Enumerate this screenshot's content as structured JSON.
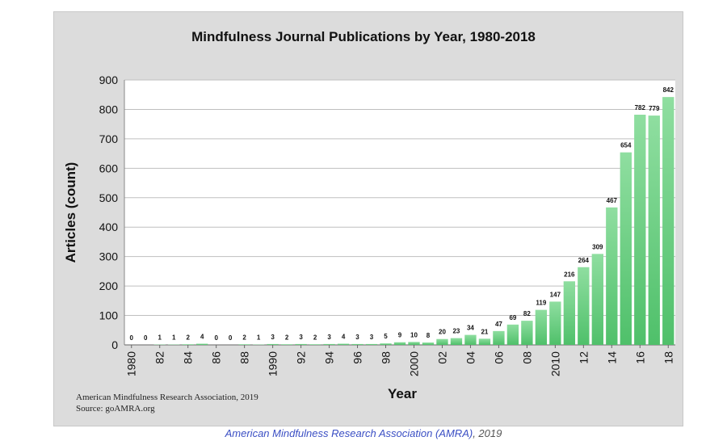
{
  "chart_data": {
    "type": "bar",
    "title": "Mindfulness Journal Publications by Year, 1980-2018",
    "xlabel": "Year",
    "ylabel": "Articles (count)",
    "ylim": [
      0,
      900
    ],
    "yticks": [
      0,
      100,
      200,
      300,
      400,
      500,
      600,
      700,
      800,
      900
    ],
    "grid": true,
    "categories": [
      "1980",
      "1981",
      "1982",
      "1983",
      "1984",
      "1985",
      "1986",
      "1987",
      "1988",
      "1989",
      "1990",
      "1991",
      "1992",
      "1993",
      "1994",
      "1995",
      "1996",
      "1997",
      "1998",
      "1999",
      "2000",
      "2001",
      "2002",
      "2003",
      "2004",
      "2005",
      "2006",
      "2007",
      "2008",
      "2009",
      "2010",
      "2011",
      "2012",
      "2013",
      "2014",
      "2015",
      "2016",
      "2017",
      "2018"
    ],
    "values": [
      0,
      0,
      1,
      1,
      2,
      4,
      0,
      0,
      2,
      1,
      3,
      2,
      3,
      2,
      3,
      4,
      3,
      3,
      5,
      9,
      10,
      8,
      20,
      23,
      34,
      21,
      47,
      69,
      82,
      119,
      147,
      216,
      264,
      309,
      467,
      654,
      782,
      779,
      842
    ],
    "xtick_labels": [
      "1980",
      "82",
      "84",
      "86",
      "88",
      "1990",
      "92",
      "94",
      "96",
      "98",
      "2000",
      "02",
      "04",
      "06",
      "08",
      "2010",
      "12",
      "14",
      "16",
      "18"
    ],
    "bar_color": "#4fc06a"
  },
  "credit": {
    "line1": "American Mindfulness Research Association, 2019",
    "line2": "Source: goAMRA.org"
  },
  "caption": {
    "org": "American Mindfulness Research Association (AMRA)",
    "year": ", 2019"
  }
}
